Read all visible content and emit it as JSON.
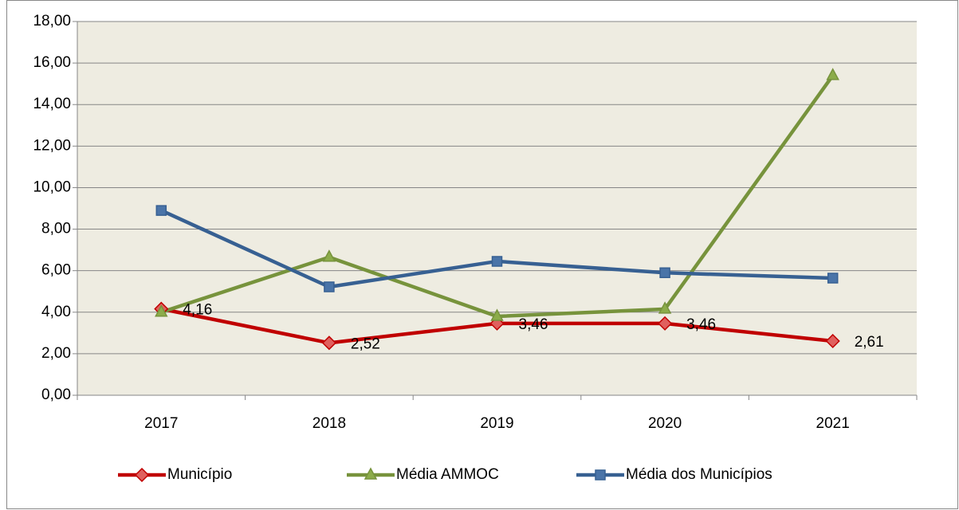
{
  "chart_data": {
    "type": "line",
    "categories": [
      "2017",
      "2018",
      "2019",
      "2020",
      "2021"
    ],
    "series": [
      {
        "name": "Município",
        "color": "#c00000",
        "marker": "diamond",
        "values": [
          4.16,
          2.52,
          3.46,
          3.46,
          2.61
        ],
        "value_labels": [
          "4,16",
          "2,52",
          "3,46",
          "3,46",
          "2,61"
        ]
      },
      {
        "name": "Média AMMOC",
        "color": "#77933c",
        "marker": "triangle",
        "values": [
          4.0,
          6.65,
          3.8,
          4.15,
          15.4
        ]
      },
      {
        "name": "Média dos Municípios",
        "color": "#376092",
        "marker": "square",
        "values": [
          8.9,
          5.22,
          6.45,
          5.9,
          5.64
        ]
      }
    ],
    "ylim": [
      0,
      18
    ],
    "yticks": [
      {
        "value": 0,
        "label": "0,00"
      },
      {
        "value": 2,
        "label": "2,00"
      },
      {
        "value": 4,
        "label": "4,00"
      },
      {
        "value": 6,
        "label": "6,00"
      },
      {
        "value": 8,
        "label": "8,00"
      },
      {
        "value": 10,
        "label": "10,00"
      },
      {
        "value": 12,
        "label": "12,00"
      },
      {
        "value": 14,
        "label": "14,00"
      },
      {
        "value": 16,
        "label": "16,00"
      },
      {
        "value": 18,
        "label": "18,00"
      }
    ],
    "grid": true,
    "legend": "bottom"
  }
}
